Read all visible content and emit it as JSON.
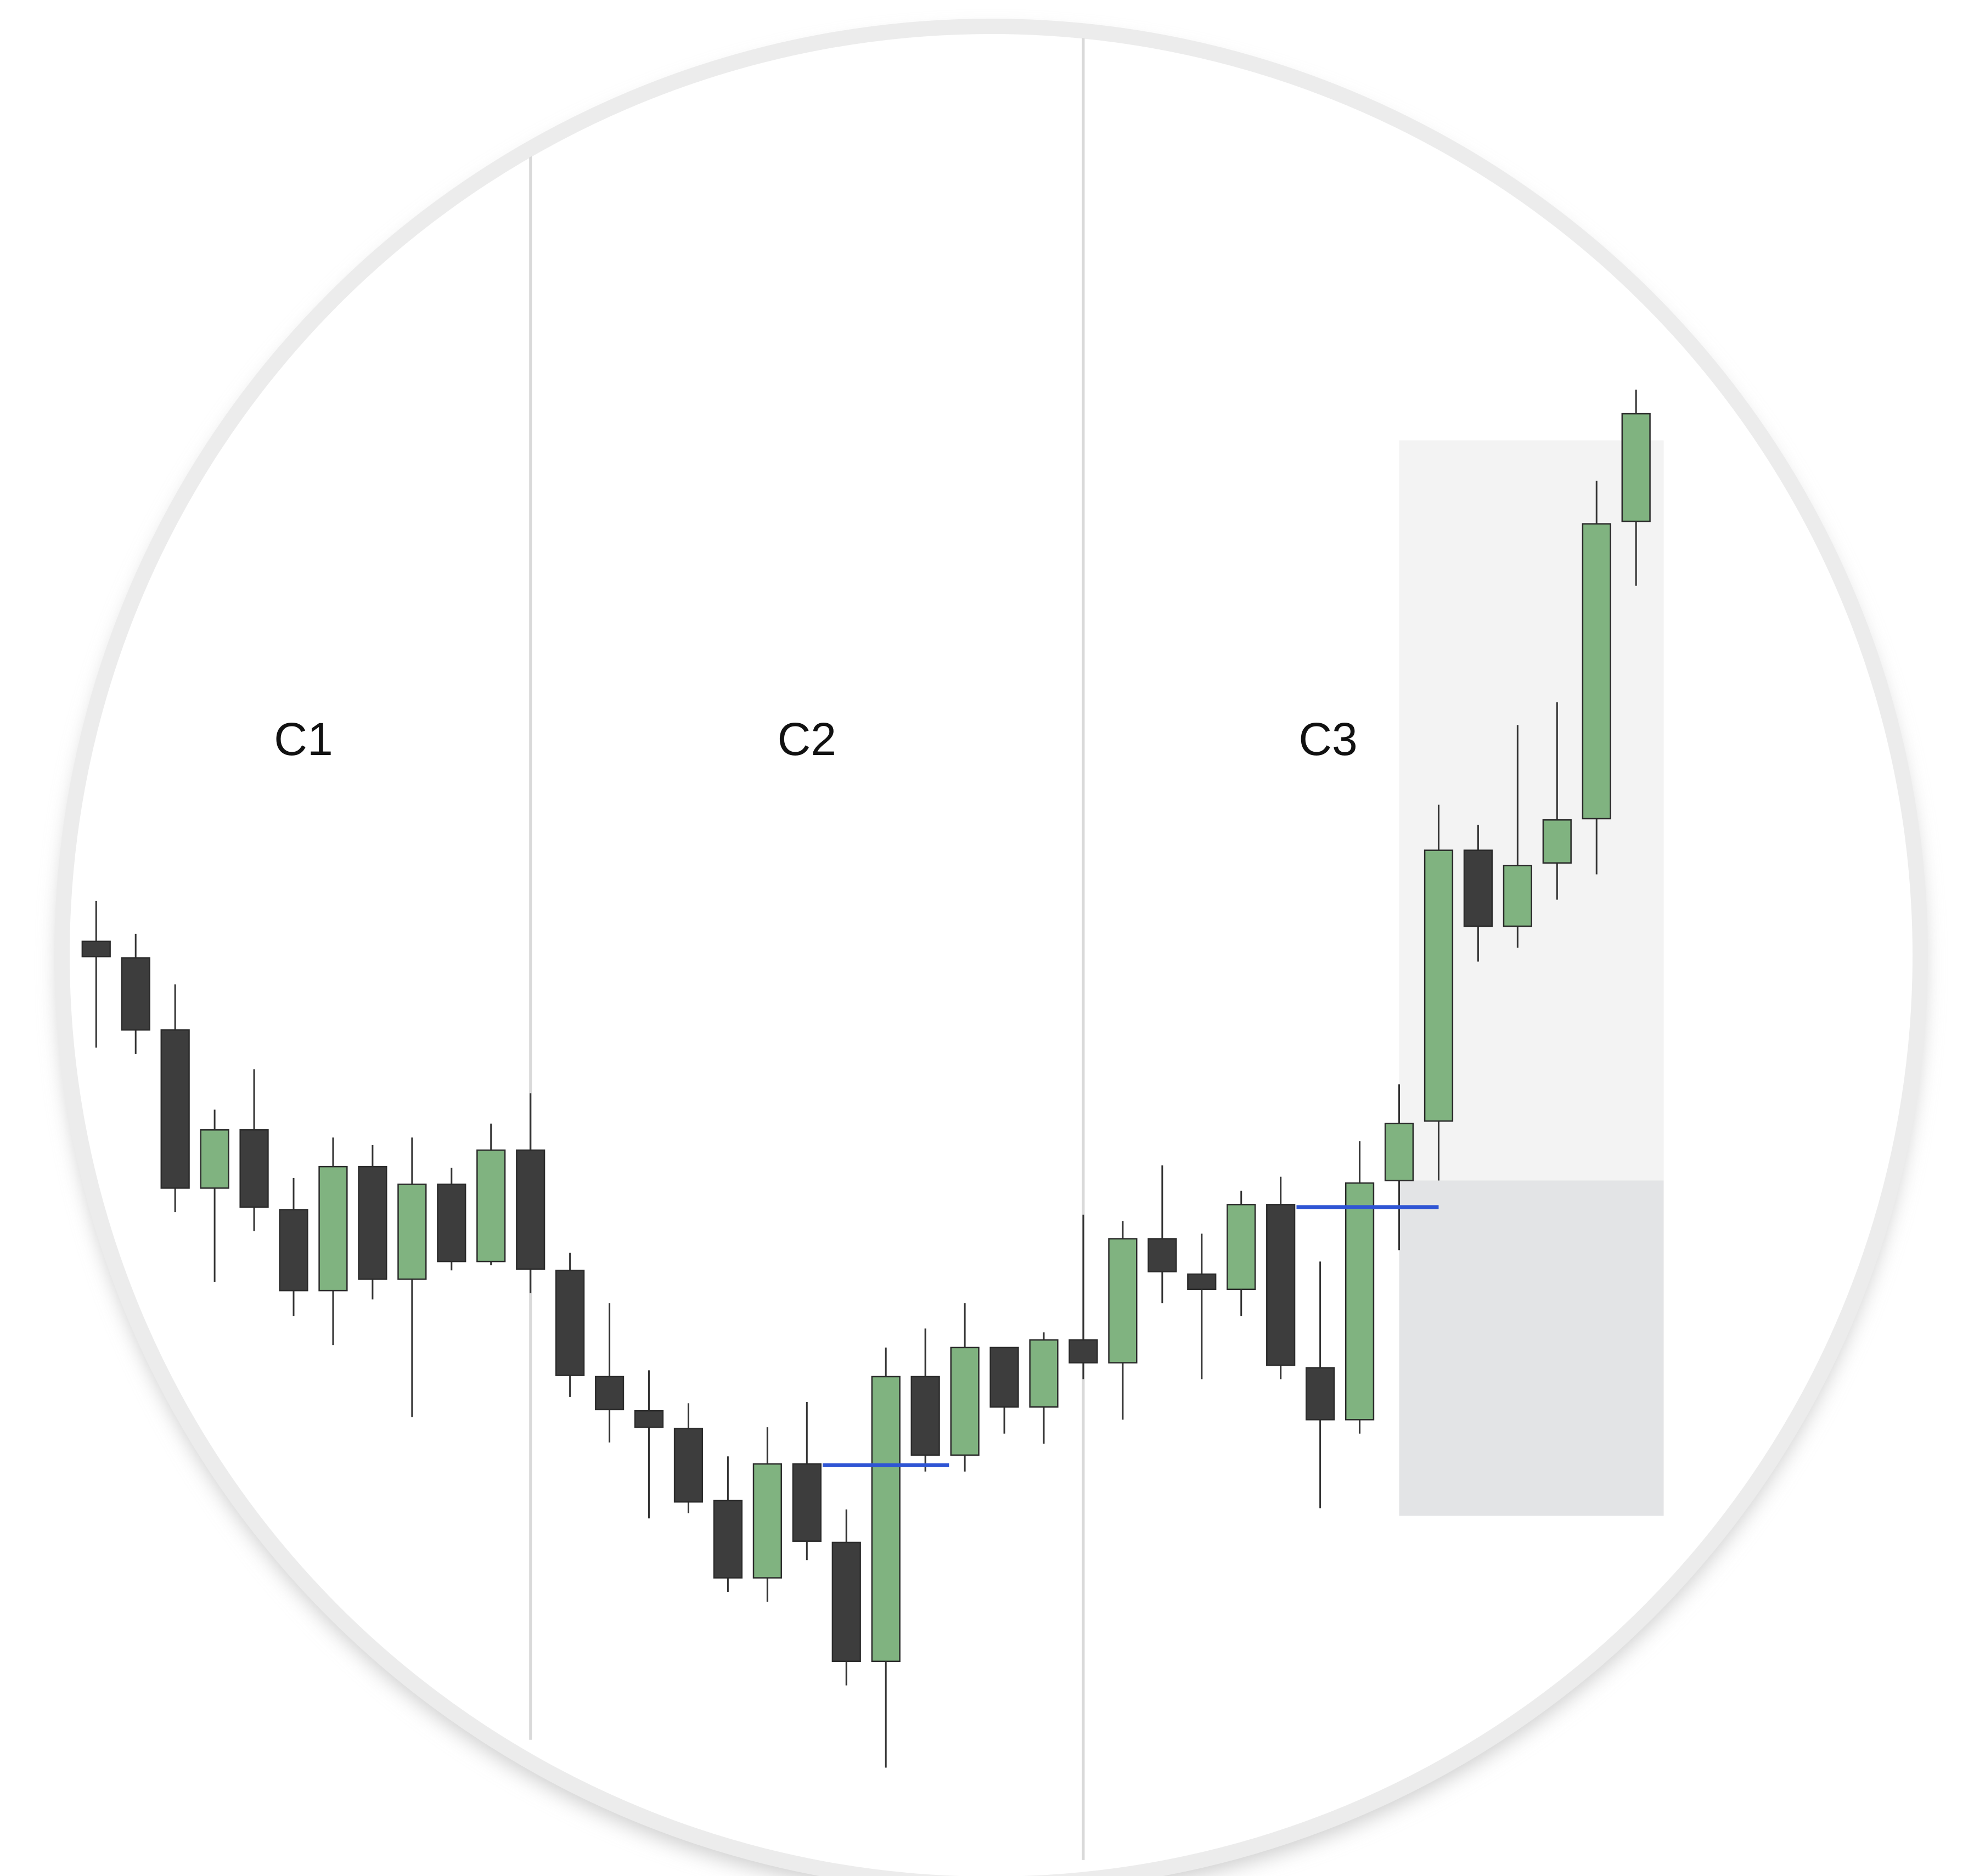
{
  "chart_data": {
    "type": "candlestick",
    "up_color": "#80b380",
    "down_color": "#3d3d3d",
    "open": [
      75.6,
      74.3,
      68.6,
      56.1,
      60.7,
      54.4,
      48.0,
      57.8,
      48.9,
      56.4,
      50.3,
      59.1,
      49.6,
      41.2,
      38.5,
      37.1,
      31.4,
      25.3,
      34.3,
      28.1,
      18.7,
      41.2,
      35.0,
      43.5,
      38.8,
      44.1,
      42.3,
      52.1,
      49.3,
      48.1,
      54.8,
      41.9,
      37.8,
      56.7,
      61.4,
      82.8,
      76.8,
      81.8,
      85.3,
      108.8
    ],
    "high": [
      78.8,
      76.2,
      72.2,
      62.3,
      65.5,
      56.9,
      60.1,
      59.5,
      60.1,
      57.7,
      61.2,
      63.6,
      51.0,
      47.0,
      41.7,
      39.1,
      34.9,
      37.2,
      39.2,
      30.7,
      43.5,
      45.0,
      47.0,
      43.5,
      44.7,
      54.0,
      53.5,
      57.9,
      52.5,
      55.9,
      57.0,
      50.3,
      59.8,
      64.3,
      86.4,
      84.8,
      92.7,
      94.5,
      112.0,
      119.2
    ],
    "low": [
      67.2,
      66.7,
      54.2,
      48.7,
      52.7,
      46.0,
      43.7,
      47.3,
      38.0,
      49.6,
      50.0,
      47.8,
      39.6,
      36.0,
      30.0,
      30.4,
      24.2,
      23.4,
      26.7,
      16.8,
      10.3,
      33.7,
      33.7,
      36.7,
      35.9,
      41.0,
      37.8,
      47.0,
      41.0,
      46.0,
      41.0,
      30.8,
      36.7,
      51.2,
      56.7,
      74.0,
      75.1,
      78.9,
      80.9,
      103.7
    ],
    "close": [
      74.4,
      68.6,
      56.1,
      60.7,
      54.6,
      48.0,
      57.8,
      48.9,
      56.4,
      50.3,
      59.1,
      49.7,
      41.3,
      38.6,
      37.2,
      31.3,
      25.3,
      34.3,
      28.2,
      18.7,
      41.2,
      35.0,
      43.5,
      38.8,
      44.1,
      42.3,
      52.1,
      49.5,
      48.1,
      54.8,
      42.1,
      37.8,
      56.5,
      61.2,
      82.8,
      76.8,
      81.6,
      85.2,
      108.6,
      117.3
    ],
    "sections": [
      {
        "label": "C1",
        "end": 11
      },
      {
        "label": "C2",
        "end": 25
      },
      {
        "label": "C3"
      }
    ],
    "levels": [
      {
        "value": 34.2,
        "from": 18.4,
        "to": 21.6,
        "color": "#2f55d4"
      },
      {
        "value": 54.6,
        "from": 30.4,
        "to": 34.0,
        "color": "#2f55d4"
      }
    ],
    "zones": [
      {
        "top": 115.2,
        "bottom": 56.7,
        "from": 33.0,
        "to": 39.7,
        "color": "#f3f3f3"
      },
      {
        "top": 56.7,
        "bottom": 30.2,
        "from": 33.0,
        "to": 39.7,
        "color": "#e3e4e6"
      }
    ]
  }
}
